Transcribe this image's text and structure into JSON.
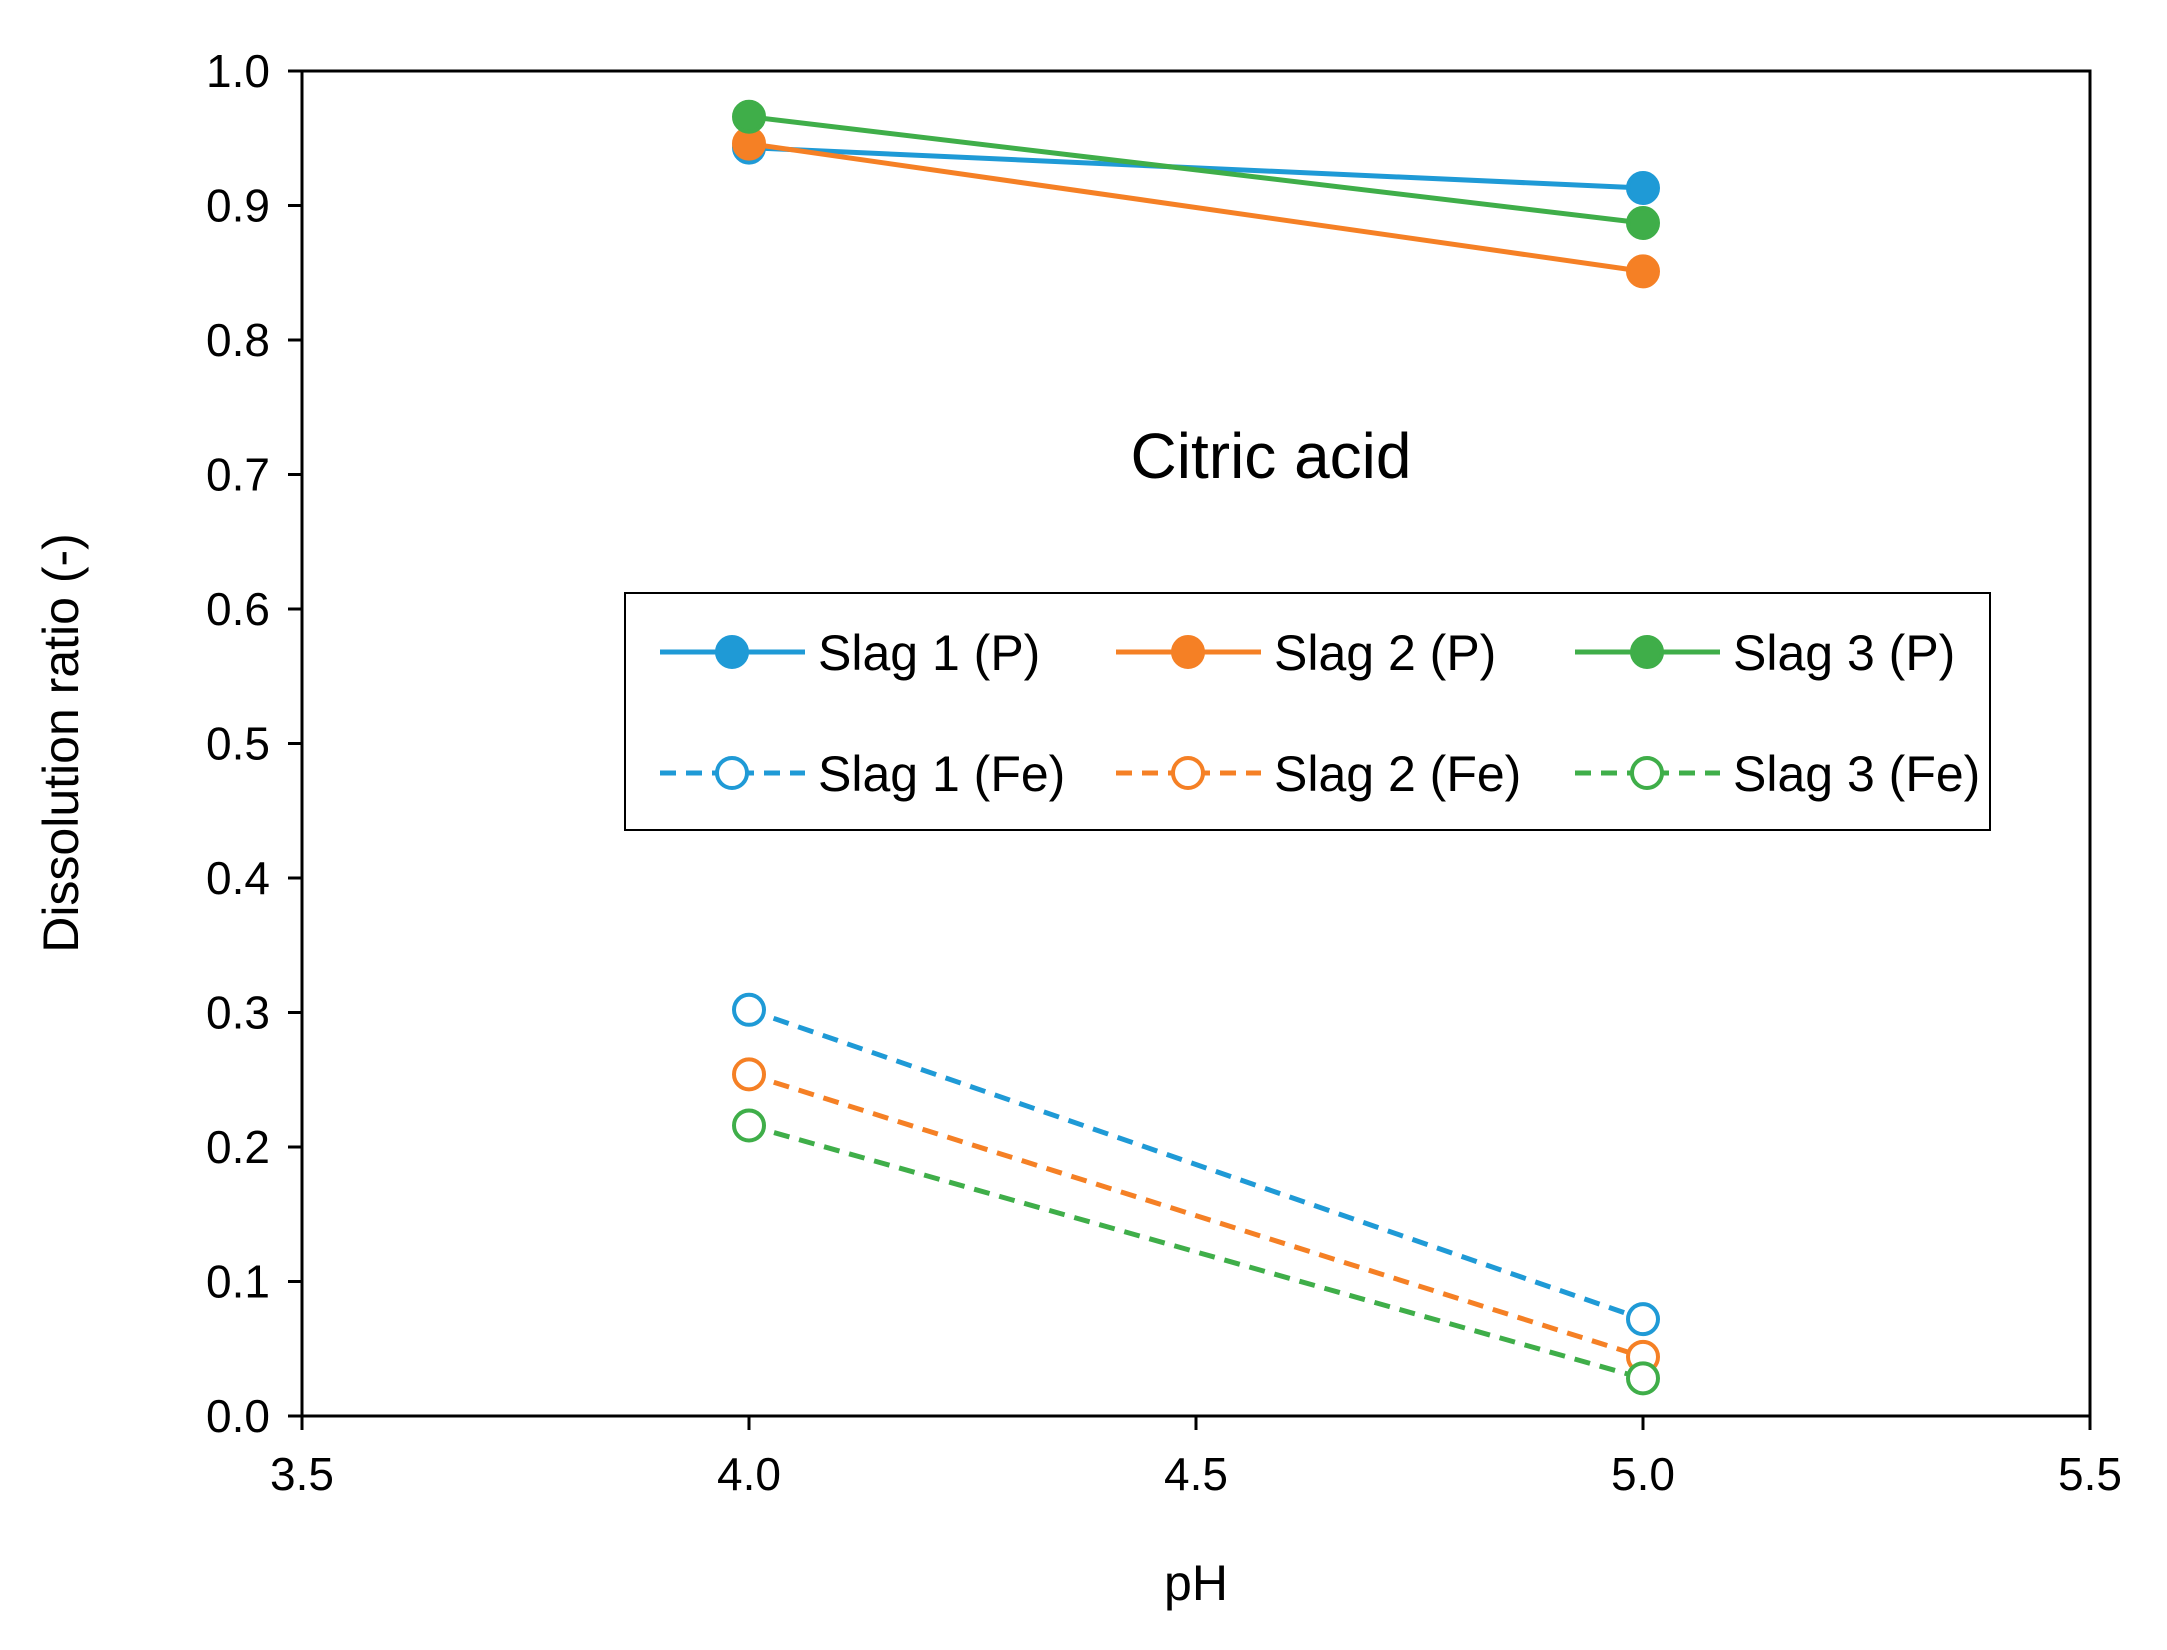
{
  "chart_data": {
    "type": "line",
    "title": "",
    "annotation": "Citric acid",
    "xlabel": "pH",
    "ylabel": "Dissolution ratio (-)",
    "xlim": [
      3.5,
      5.5
    ],
    "ylim": [
      0.0,
      1.0
    ],
    "xticks": [
      "3.5",
      "4.0",
      "4.5",
      "5.0",
      "5.5"
    ],
    "xtick_values": [
      3.5,
      4.0,
      4.5,
      5.0,
      5.5
    ],
    "yticks": [
      "0.0",
      "0.1",
      "0.2",
      "0.3",
      "0.4",
      "0.5",
      "0.6",
      "0.7",
      "0.8",
      "0.9",
      "1.0"
    ],
    "ytick_values": [
      0.0,
      0.1,
      0.2,
      0.3,
      0.4,
      0.5,
      0.6,
      0.7,
      0.8,
      0.9,
      1.0
    ],
    "grid": false,
    "legend_position": "center",
    "series": [
      {
        "name": "Slag 1 (P)",
        "x": [
          4.0,
          5.0
        ],
        "values": [
          0.943,
          0.913
        ],
        "color": "#1f9ad6",
        "dashed": false,
        "filled": true
      },
      {
        "name": "Slag 2 (P)",
        "x": [
          4.0,
          5.0
        ],
        "values": [
          0.946,
          0.851
        ],
        "color": "#f58025",
        "dashed": false,
        "filled": true
      },
      {
        "name": "Slag 3 (P)",
        "x": [
          4.0,
          5.0
        ],
        "values": [
          0.966,
          0.887
        ],
        "color": "#3fae49",
        "dashed": false,
        "filled": true
      },
      {
        "name": "Slag 1 (Fe)",
        "x": [
          4.0,
          5.0
        ],
        "values": [
          0.302,
          0.072
        ],
        "color": "#1f9ad6",
        "dashed": true,
        "filled": false
      },
      {
        "name": "Slag 2 (Fe)",
        "x": [
          4.0,
          5.0
        ],
        "values": [
          0.254,
          0.044
        ],
        "color": "#f58025",
        "dashed": true,
        "filled": false
      },
      {
        "name": "Slag 3 (Fe)",
        "x": [
          4.0,
          5.0
        ],
        "values": [
          0.216,
          0.028
        ],
        "color": "#3fae49",
        "dashed": true,
        "filled": false
      }
    ]
  }
}
